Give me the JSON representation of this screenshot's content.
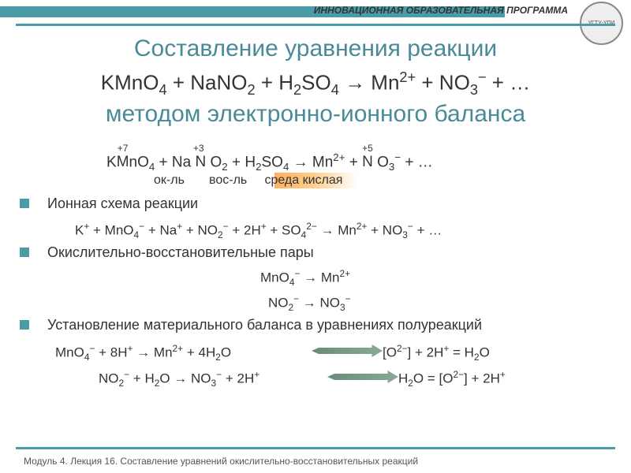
{
  "header": {
    "program": "ИННОВАЦИОННАЯ ОБРАЗОВАТЕЛЬНАЯ ПРОГРАММА",
    "logo": "УГТУ-УПИ"
  },
  "title": "Составление уравнения реакции",
  "main_equation": "KMnO₄ + NaNO₂ + H₂SO₄ → Mn²⁺ + NO₃⁻ + …",
  "subtitle": "методом электронно-ионного баланса",
  "oxidation": {
    "states": [
      "+7",
      "+3",
      "+5"
    ],
    "equation": "KMnO₄ + NaNO₂ + H₂SO₄ → Mn²⁺ + NO₃⁻ + …",
    "labels": {
      "ox": "ок-ль",
      "red": "вос-ль",
      "env": "среда кислая"
    }
  },
  "sections": [
    {
      "title": "Ионная схема реакции",
      "eq": "K⁺ + MnO₄⁻ + Na⁺ + NO₂⁻ + 2H⁺ + SO₄²⁻ → Mn²⁺ + NO₃⁻ + …"
    },
    {
      "title": "Окислительно-восстановительные пары",
      "eq_a": "MnO₄⁻ → Mn²⁺",
      "eq_b": "NO₂⁻ → NO₃⁻"
    },
    {
      "title": "Установление материального баланса в уравнениях полуреакций",
      "eq_a_left": "MnO₄⁻ + 8H⁺ → Mn²⁺ + 4H₂O",
      "eq_a_right": "[O²⁻] + 2H⁺ = H₂O",
      "eq_b_left": "NO₂⁻ + H₂O → NO₃⁻ + 2H⁺",
      "eq_b_right": "H₂O = [O²⁻] + 2H⁺"
    }
  ],
  "footer": "Модуль 4. Лекция 16. Составление уравнений окислительно-восстановительных реакций",
  "colors": {
    "accent": "#4a9ba8",
    "title": "#4a8a98",
    "highlight": "#ffb060",
    "arrow": "#6a8a7a"
  }
}
